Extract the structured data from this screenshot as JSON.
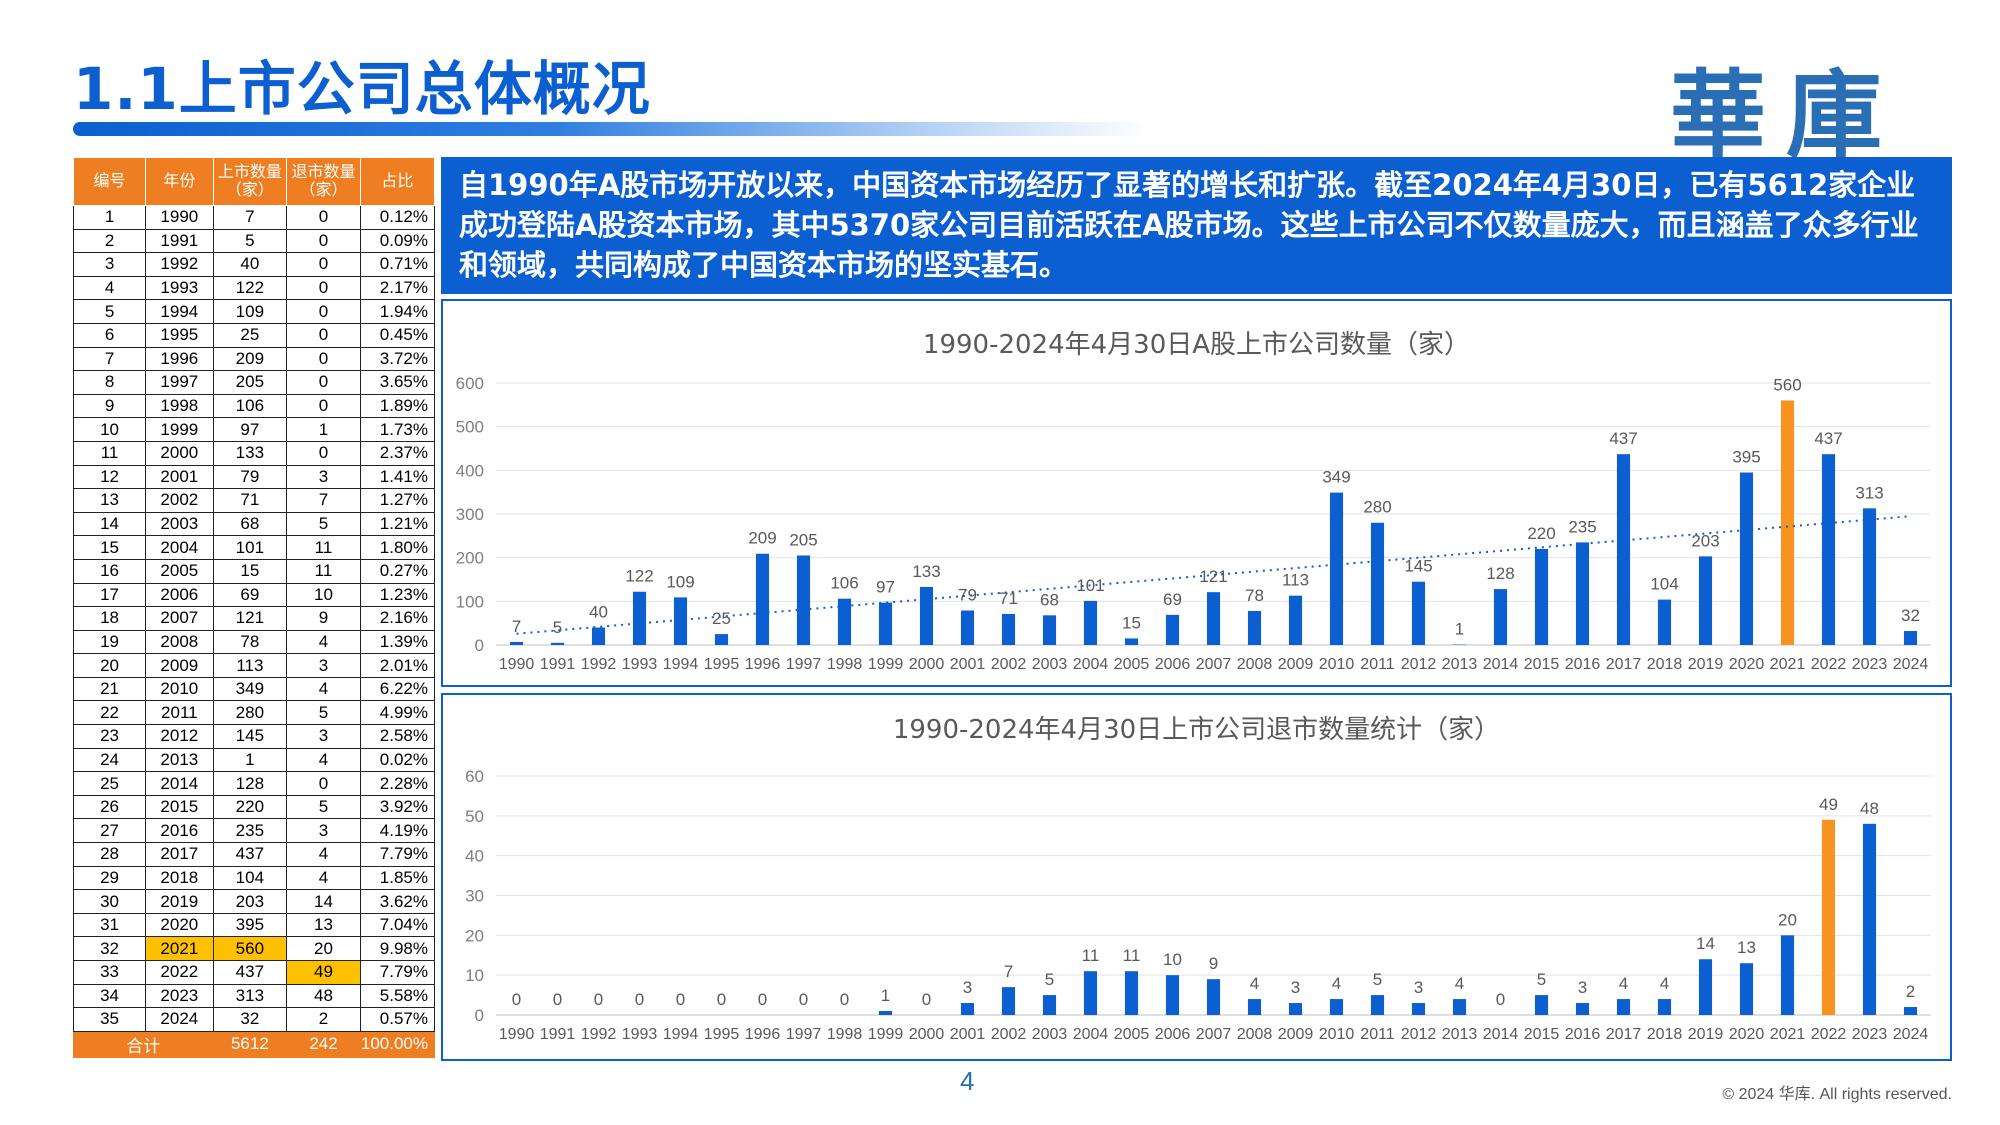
{
  "page": {
    "title": "1.1上市公司总体概况",
    "logo_text": "華庫",
    "page_number": "4",
    "copyright": "© 2024 华库. All rights reserved.",
    "intro": "自1990年A股市场开放以来，中国资本市场经历了显著的增长和扩张。截至2024年4月30日，已有5612家企业成功登陆A股资本市场，其中5370家公司目前活跃在A股市场。这些上市公司不仅数量庞大，而且涵盖了众多行业和领域，共同构成了中国资本市场的坚实基石。"
  },
  "colors": {
    "accent": "#0b5fd0",
    "highlight_bar": "#f7931e",
    "table_header": "#ef7d22",
    "table_highlight": "#ffc000"
  },
  "table": {
    "headers": [
      "编号",
      "年份",
      "上市数量（家）",
      "退市数量（家）",
      "占比"
    ],
    "header_lines": [
      [
        "编号"
      ],
      [
        "年份"
      ],
      [
        "上市数量",
        "（家）"
      ],
      [
        "退市数量",
        "（家）"
      ],
      [
        "占比"
      ]
    ],
    "rows": [
      [
        "1",
        "1990",
        "7",
        "0",
        "0.12%"
      ],
      [
        "2",
        "1991",
        "5",
        "0",
        "0.09%"
      ],
      [
        "3",
        "1992",
        "40",
        "0",
        "0.71%"
      ],
      [
        "4",
        "1993",
        "122",
        "0",
        "2.17%"
      ],
      [
        "5",
        "1994",
        "109",
        "0",
        "1.94%"
      ],
      [
        "6",
        "1995",
        "25",
        "0",
        "0.45%"
      ],
      [
        "7",
        "1996",
        "209",
        "0",
        "3.72%"
      ],
      [
        "8",
        "1997",
        "205",
        "0",
        "3.65%"
      ],
      [
        "9",
        "1998",
        "106",
        "0",
        "1.89%"
      ],
      [
        "10",
        "1999",
        "97",
        "1",
        "1.73%"
      ],
      [
        "11",
        "2000",
        "133",
        "0",
        "2.37%"
      ],
      [
        "12",
        "2001",
        "79",
        "3",
        "1.41%"
      ],
      [
        "13",
        "2002",
        "71",
        "7",
        "1.27%"
      ],
      [
        "14",
        "2003",
        "68",
        "5",
        "1.21%"
      ],
      [
        "15",
        "2004",
        "101",
        "11",
        "1.80%"
      ],
      [
        "16",
        "2005",
        "15",
        "11",
        "0.27%"
      ],
      [
        "17",
        "2006",
        "69",
        "10",
        "1.23%"
      ],
      [
        "18",
        "2007",
        "121",
        "9",
        "2.16%"
      ],
      [
        "19",
        "2008",
        "78",
        "4",
        "1.39%"
      ],
      [
        "20",
        "2009",
        "113",
        "3",
        "2.01%"
      ],
      [
        "21",
        "2010",
        "349",
        "4",
        "6.22%"
      ],
      [
        "22",
        "2011",
        "280",
        "5",
        "4.99%"
      ],
      [
        "23",
        "2012",
        "145",
        "3",
        "2.58%"
      ],
      [
        "24",
        "2013",
        "1",
        "4",
        "0.02%"
      ],
      [
        "25",
        "2014",
        "128",
        "0",
        "2.28%"
      ],
      [
        "26",
        "2015",
        "220",
        "5",
        "3.92%"
      ],
      [
        "27",
        "2016",
        "235",
        "3",
        "4.19%"
      ],
      [
        "28",
        "2017",
        "437",
        "4",
        "7.79%"
      ],
      [
        "29",
        "2018",
        "104",
        "4",
        "1.85%"
      ],
      [
        "30",
        "2019",
        "203",
        "14",
        "3.62%"
      ],
      [
        "31",
        "2020",
        "395",
        "13",
        "7.04%"
      ],
      [
        "32",
        "2021",
        "560",
        "20",
        "9.98%"
      ],
      [
        "33",
        "2022",
        "437",
        "49",
        "7.79%"
      ],
      [
        "34",
        "2023",
        "313",
        "48",
        "5.58%"
      ],
      [
        "35",
        "2024",
        "32",
        "2",
        "0.57%"
      ]
    ],
    "highlight_cells": [
      [
        31,
        1
      ],
      [
        31,
        2
      ],
      [
        32,
        3
      ]
    ],
    "total": [
      "合计",
      "5612",
      "242",
      "100.00%"
    ]
  },
  "chart_data": [
    {
      "type": "bar",
      "title": "1990-2024年4月30日A股上市公司数量（家）",
      "categories": [
        "1990",
        "1991",
        "1992",
        "1993",
        "1994",
        "1995",
        "1996",
        "1997",
        "1998",
        "1999",
        "2000",
        "2001",
        "2002",
        "2003",
        "2004",
        "2005",
        "2006",
        "2007",
        "2008",
        "2009",
        "2010",
        "2011",
        "2012",
        "2013",
        "2014",
        "2015",
        "2016",
        "2017",
        "2018",
        "2019",
        "2020",
        "2021",
        "2022",
        "2023",
        "2024"
      ],
      "values": [
        7,
        5,
        40,
        122,
        109,
        25,
        209,
        205,
        106,
        97,
        133,
        79,
        71,
        68,
        101,
        15,
        69,
        121,
        78,
        113,
        349,
        280,
        145,
        1,
        128,
        220,
        235,
        437,
        104,
        203,
        395,
        560,
        437,
        313,
        32
      ],
      "highlight_category": "2021",
      "trendline": "linear dotted",
      "ylim": [
        0,
        600
      ],
      "yticks": [
        0,
        100,
        200,
        300,
        400,
        500,
        600
      ],
      "grid": true,
      "xlabel": "",
      "ylabel": ""
    },
    {
      "type": "bar",
      "title": "1990-2024年4月30日上市公司退市数量统计（家）",
      "categories": [
        "1990",
        "1991",
        "1992",
        "1993",
        "1994",
        "1995",
        "1996",
        "1997",
        "1998",
        "1999",
        "2000",
        "2001",
        "2002",
        "2003",
        "2004",
        "2005",
        "2006",
        "2007",
        "2008",
        "2009",
        "2010",
        "2011",
        "2012",
        "2013",
        "2014",
        "2015",
        "2016",
        "2017",
        "2018",
        "2019",
        "2020",
        "2021",
        "2022",
        "2023",
        "2024"
      ],
      "values": [
        0,
        0,
        0,
        0,
        0,
        0,
        0,
        0,
        0,
        1,
        0,
        3,
        7,
        5,
        11,
        11,
        10,
        9,
        4,
        3,
        4,
        5,
        3,
        4,
        0,
        5,
        3,
        4,
        4,
        14,
        13,
        20,
        49,
        48,
        2
      ],
      "highlight_category": "2022",
      "ylim": [
        0,
        60
      ],
      "yticks": [
        0,
        10,
        20,
        30,
        40,
        50,
        60
      ],
      "grid": true,
      "xlabel": "",
      "ylabel": ""
    }
  ]
}
